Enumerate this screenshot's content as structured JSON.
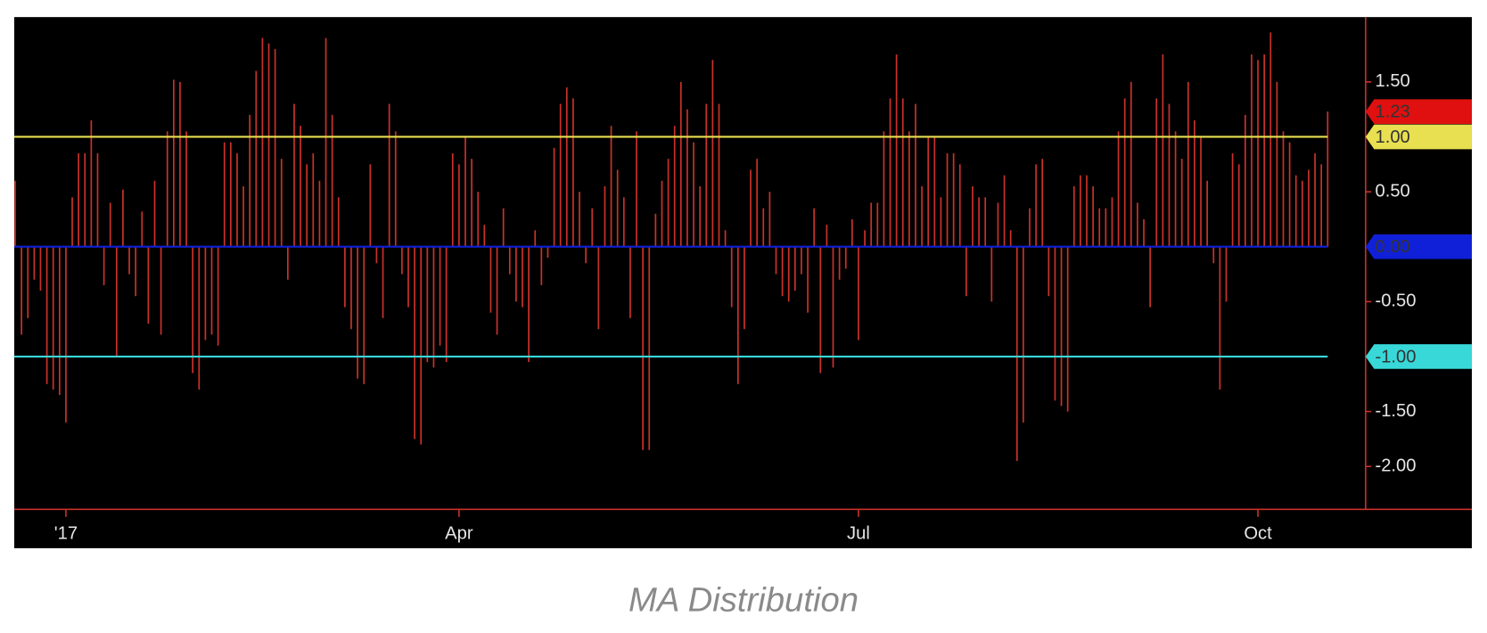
{
  "chart_data": {
    "type": "bar",
    "caption": "MA Distribution",
    "color": "#c8322a",
    "categories": [
      null,
      null,
      null,
      null,
      null,
      null,
      null,
      null,
      "'17",
      null,
      null,
      null,
      null,
      null,
      null,
      null,
      null,
      null,
      null,
      null,
      null,
      null,
      null,
      null,
      null,
      null,
      null,
      null,
      null,
      null,
      null,
      null,
      null,
      null,
      null,
      null,
      null,
      null,
      null,
      null,
      null,
      null,
      null,
      null,
      null,
      null,
      null,
      null,
      null,
      null,
      null,
      null,
      null,
      null,
      null,
      null,
      null,
      null,
      null,
      null,
      null,
      null,
      null,
      null,
      null,
      null,
      null,
      null,
      null,
      null,
      "Apr",
      null,
      null,
      null,
      null,
      null,
      null,
      null,
      null,
      null,
      null,
      null,
      null,
      null,
      null,
      null,
      null,
      null,
      null,
      null,
      null,
      null,
      null,
      null,
      null,
      null,
      null,
      null,
      null,
      null,
      null,
      null,
      null,
      null,
      null,
      null,
      null,
      null,
      null,
      null,
      null,
      null,
      null,
      null,
      null,
      null,
      null,
      null,
      null,
      null,
      null,
      null,
      null,
      null,
      null,
      null,
      null,
      null,
      null,
      null,
      null,
      null,
      null,
      "Jul",
      null,
      null,
      null,
      null,
      null,
      null,
      null,
      null,
      null,
      null,
      null,
      null,
      null,
      null,
      null,
      null,
      null,
      null,
      null,
      null,
      null,
      null,
      null,
      null,
      null,
      null,
      null,
      null,
      null,
      null,
      null,
      null,
      null,
      null,
      null,
      null,
      null,
      null,
      null,
      null,
      null,
      null,
      null,
      null,
      null,
      null,
      null,
      null,
      null,
      null,
      null,
      null,
      null,
      null,
      null,
      null,
      null,
      null,
      null,
      null,
      null,
      null,
      "Oct",
      null,
      null,
      null,
      null,
      null,
      null,
      null,
      null,
      null,
      null,
      null
    ],
    "values": [
      0.6,
      -0.8,
      -0.65,
      -0.3,
      -0.4,
      -1.25,
      -1.3,
      -1.35,
      -1.6,
      0.45,
      0.85,
      0.85,
      1.15,
      0.85,
      -0.35,
      0.4,
      -1.0,
      0.52,
      -0.25,
      -0.45,
      0.32,
      -0.7,
      0.6,
      -0.8,
      1.05,
      1.52,
      1.5,
      1.05,
      -1.15,
      -1.3,
      -0.85,
      -0.8,
      -0.9,
      0.95,
      0.95,
      0.85,
      0.55,
      1.2,
      1.6,
      1.9,
      1.85,
      1.8,
      0.8,
      -0.3,
      1.3,
      1.1,
      0.75,
      0.85,
      0.6,
      1.9,
      1.2,
      0.45,
      -0.55,
      -0.75,
      -1.2,
      -1.25,
      0.75,
      -0.15,
      -0.65,
      1.3,
      1.05,
      -0.25,
      -0.55,
      -1.75,
      -1.8,
      -1.05,
      -1.1,
      -0.9,
      -1.05,
      0.85,
      0.75,
      1.0,
      0.8,
      0.5,
      0.2,
      -0.6,
      -0.8,
      0.35,
      -0.25,
      -0.5,
      -0.55,
      -1.05,
      0.15,
      -0.35,
      -0.1,
      0.9,
      1.3,
      1.45,
      1.35,
      0.5,
      -0.15,
      0.35,
      -0.75,
      0.55,
      1.1,
      0.7,
      0.45,
      -0.65,
      1.05,
      -1.85,
      -1.85,
      0.3,
      0.6,
      0.8,
      1.1,
      1.5,
      1.25,
      0.95,
      0.55,
      1.3,
      1.7,
      1.3,
      0.15,
      -0.55,
      -1.25,
      -0.75,
      0.7,
      0.8,
      0.35,
      0.5,
      -0.25,
      -0.45,
      -0.5,
      -0.4,
      -0.25,
      -0.6,
      0.35,
      -1.15,
      0.2,
      -1.1,
      -0.3,
      -0.2,
      0.25,
      -0.85,
      0.15,
      0.4,
      0.4,
      1.05,
      1.35,
      1.75,
      1.35,
      1.05,
      1.3,
      0.55,
      1.0,
      1.0,
      0.45,
      0.85,
      0.85,
      0.75,
      -0.45,
      0.55,
      0.45,
      0.45,
      -0.5,
      0.4,
      0.65,
      0.15,
      -1.95,
      -1.6,
      0.35,
      0.75,
      0.8,
      -0.45,
      -1.4,
      -1.45,
      -1.5,
      0.55,
      0.65,
      0.65,
      0.55,
      0.35,
      0.35,
      0.45,
      1.05,
      1.35,
      1.5,
      0.4,
      0.25,
      -0.55,
      1.35,
      1.75,
      1.3,
      1.05,
      0.8,
      1.5,
      1.15,
      1.0,
      0.6,
      -0.15,
      -1.3,
      -0.5,
      0.85,
      0.75,
      1.2,
      1.75,
      1.7,
      1.75,
      1.95,
      1.5,
      1.05,
      0.95,
      0.65,
      0.6,
      0.7,
      0.85,
      0.75,
      1.23
    ],
    "ylim": [
      -2.39,
      2.09
    ],
    "yticks": [
      {
        "value": 1.5,
        "label": "1.50"
      },
      {
        "value": 0.5,
        "label": "0.50"
      },
      {
        "value": -0.5,
        "label": "-0.50"
      },
      {
        "value": -1.5,
        "label": "-1.50"
      },
      {
        "value": -2,
        "label": "-2.00"
      }
    ],
    "reference_lines": [
      {
        "value": 1,
        "label": "1.00",
        "color": "#e8e050"
      },
      {
        "value": 0,
        "label": "0.00",
        "color": "#1020d8"
      },
      {
        "value": -1,
        "label": "-1.00",
        "color": "#38d8d8"
      }
    ],
    "last_value_tag": {
      "label": "1.23",
      "color": "#e01010"
    }
  }
}
